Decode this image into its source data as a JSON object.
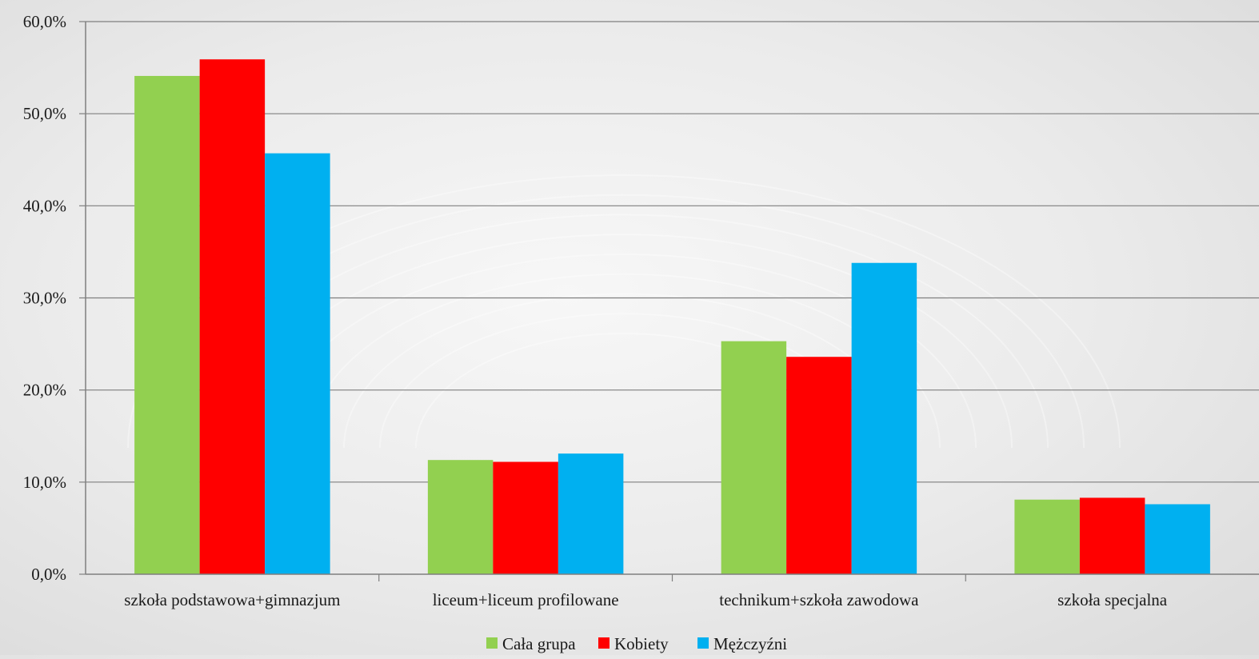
{
  "colors": {
    "cala_grupa": "#92d050",
    "kobiety": "#ff0000",
    "mezczyzni": "#00b0f0",
    "gridline": "#7f7f7f",
    "axis": "#7f7f7f",
    "text": "#1a1a1a"
  },
  "chart_data": {
    "type": "bar",
    "title": "",
    "xlabel": "",
    "ylabel": "",
    "ylim": [
      0,
      60
    ],
    "y_ticks": [
      0,
      10,
      20,
      30,
      40,
      50,
      60
    ],
    "y_tick_labels": [
      "0,0%",
      "10,0%",
      "20,0%",
      "30,0%",
      "40,0%",
      "50,0%",
      "60,0%"
    ],
    "grid": true,
    "legend_position": "bottom",
    "categories": [
      "szkoła podstawowa+gimnazjum",
      "liceum+liceum profilowane",
      "technikum+szkoła zawodowa",
      "szkoła specjalna"
    ],
    "series": [
      {
        "name": "Cała grupa",
        "color": "#92d050",
        "values": [
          54.1,
          12.4,
          25.3,
          8.1
        ]
      },
      {
        "name": "Kobiety",
        "color": "#ff0000",
        "values": [
          55.9,
          12.2,
          23.6,
          8.3
        ]
      },
      {
        "name": "Mężczyźni",
        "color": "#00b0f0",
        "values": [
          45.7,
          13.1,
          33.8,
          7.6
        ]
      }
    ]
  }
}
